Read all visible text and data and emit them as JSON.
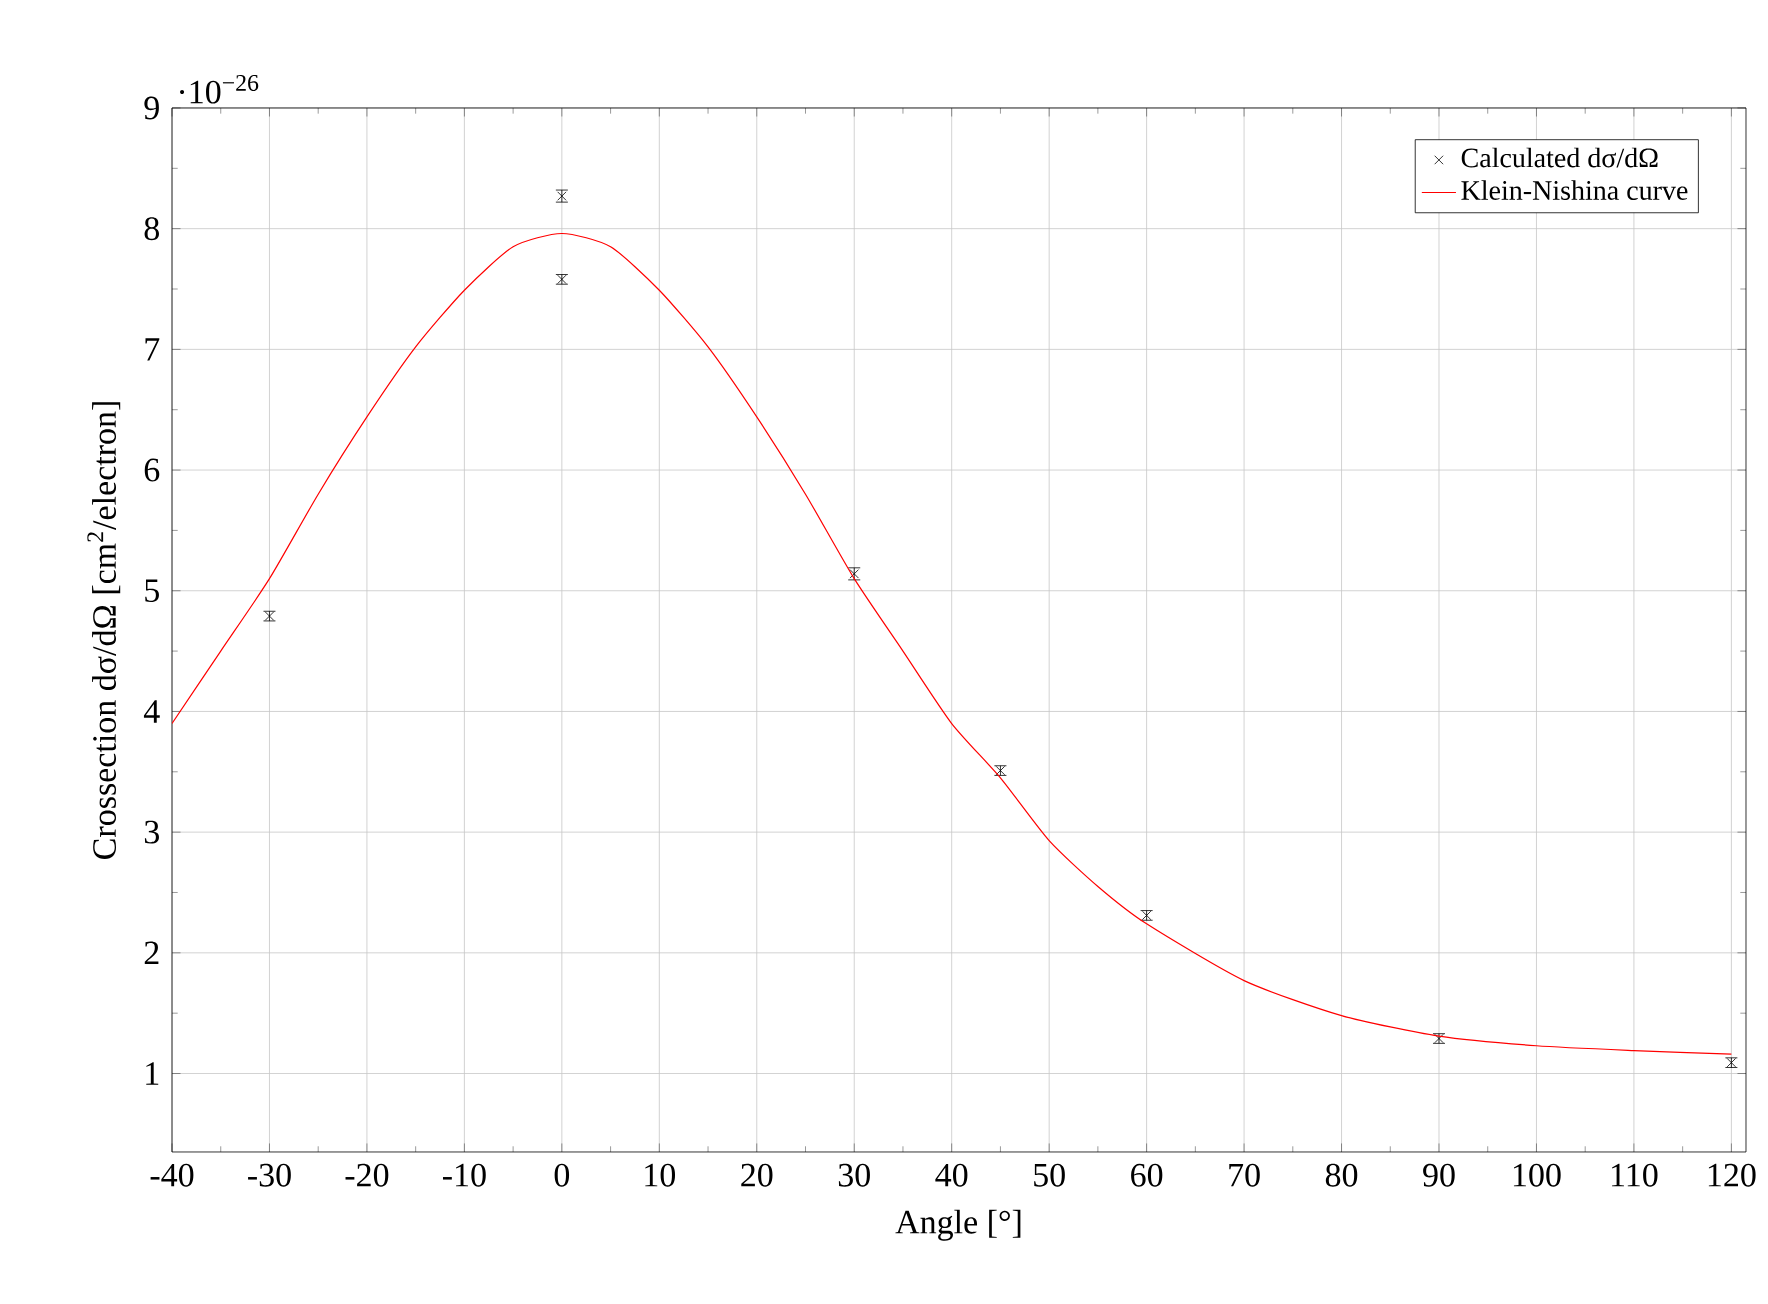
{
  "chart_data": {
    "type": "scatter",
    "xlabel": "Angle  [°]",
    "ylabel": "Crossection dσ/dΩ [cm$^{2}$/electron]",
    "annotations": [
      "·10$^{−26}$"
    ],
    "xlim": [
      -40,
      121.5
    ],
    "ylim": [
      0.35,
      9
    ],
    "xticks": [
      -40,
      -30,
      -20,
      -10,
      0,
      10,
      20,
      30,
      40,
      50,
      60,
      70,
      80,
      90,
      100,
      110,
      120
    ],
    "yticks": [
      1,
      2,
      3,
      4,
      5,
      6,
      7,
      8,
      9
    ],
    "grid": true,
    "legend": "top right",
    "series": [
      {
        "name": "Calculated dσ/dΩ",
        "color": "#000000",
        "marker": "cross",
        "x": [
          -30,
          0,
          0,
          30,
          45,
          60,
          90,
          120
        ],
        "values": [
          4.79,
          8.27,
          7.58,
          5.14,
          3.51,
          2.31,
          1.29,
          1.09
        ],
        "errors": [
          0.04,
          0.05,
          0.04,
          0.05,
          0.04,
          0.04,
          0.04,
          0.04
        ]
      },
      {
        "name": "Klein-Nishina curve",
        "type": "line",
        "color": "#ff0000",
        "marker": "none",
        "x": [
          -40,
          -35,
          -30,
          -25,
          -20,
          -15,
          -10,
          -5,
          0,
          5,
          10,
          15,
          20,
          25,
          30,
          35,
          40,
          45,
          50,
          55,
          60,
          70,
          80,
          90,
          100,
          110,
          120
        ],
        "values": [
          3.9,
          4.5,
          5.1,
          5.8,
          6.44,
          7.02,
          7.49,
          7.85,
          7.96,
          7.85,
          7.49,
          7.02,
          6.44,
          5.8,
          5.1,
          4.5,
          3.9,
          3.45,
          2.93,
          2.55,
          2.24,
          1.77,
          1.48,
          1.31,
          1.23,
          1.19,
          1.16
        ]
      }
    ]
  }
}
